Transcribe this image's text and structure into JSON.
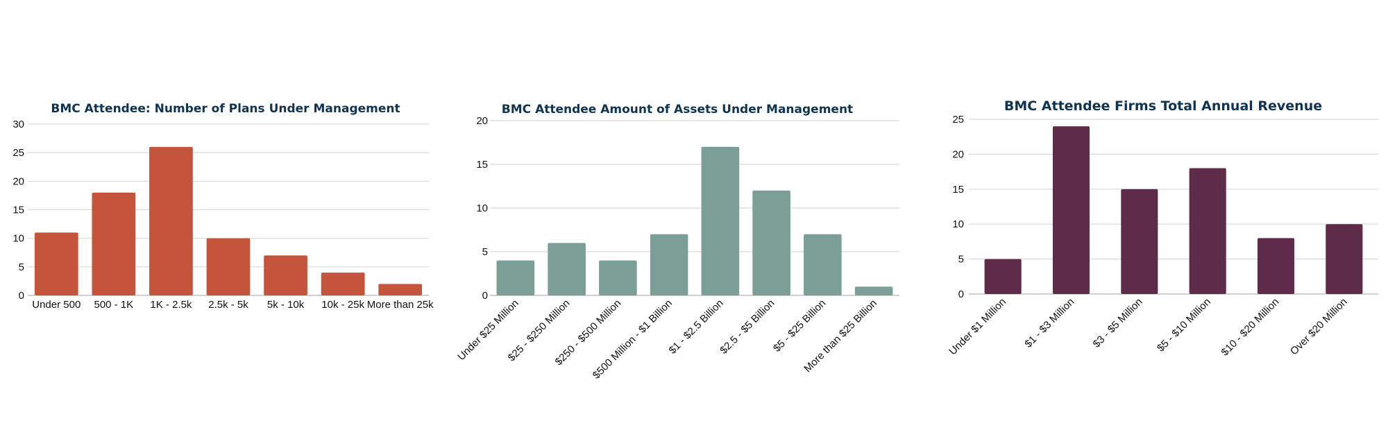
{
  "chart_data": [
    {
      "type": "bar",
      "title": "BMC Attendee: Number of Plans Under Management",
      "categories": [
        "Under 500",
        "500 - 1K",
        "1K - 2.5k",
        "2.5k - 5k",
        "5k - 10k",
        "10k - 25k",
        "More than 25k"
      ],
      "values": [
        11,
        18,
        26,
        10,
        7,
        4,
        2
      ],
      "ylim": [
        0,
        30
      ],
      "yticks": [
        0,
        5,
        10,
        15,
        20,
        25,
        30
      ],
      "xlabel": "",
      "ylabel": "",
      "grid": true,
      "color": "#c5553a"
    },
    {
      "type": "bar",
      "title": "BMC Attendee Amount of Assets Under Management",
      "categories": [
        "Under $25 Million",
        "$25 - $250 Million",
        "$250 - $500 Million",
        "$500 Million - $1 Billion",
        "$1 - $2.5 Billion",
        "$2.5 - $5 Billion",
        "$5 - $25 Billion",
        "More than $25 Billion"
      ],
      "values": [
        4,
        6,
        4,
        7,
        17,
        12,
        7,
        1
      ],
      "ylim": [
        0,
        20
      ],
      "yticks": [
        0,
        5,
        10,
        15,
        20
      ],
      "xlabel": "",
      "ylabel": "",
      "grid": true,
      "color": "#7b9f97"
    },
    {
      "type": "bar",
      "title": "BMC Attendee Firms Total Annual Revenue",
      "categories": [
        "Under $1 Million",
        "$1 - $3 Million",
        "$3 - $5 Million",
        "$5 - $10 Million",
        "$10 - $20 Million",
        "Over $20 Million"
      ],
      "values": [
        5,
        24,
        15,
        18,
        8,
        10
      ],
      "ylim": [
        0,
        25
      ],
      "yticks": [
        0,
        5,
        10,
        15,
        20,
        25
      ],
      "xlabel": "",
      "ylabel": "",
      "grid": true,
      "color": "#5e2b48"
    }
  ]
}
